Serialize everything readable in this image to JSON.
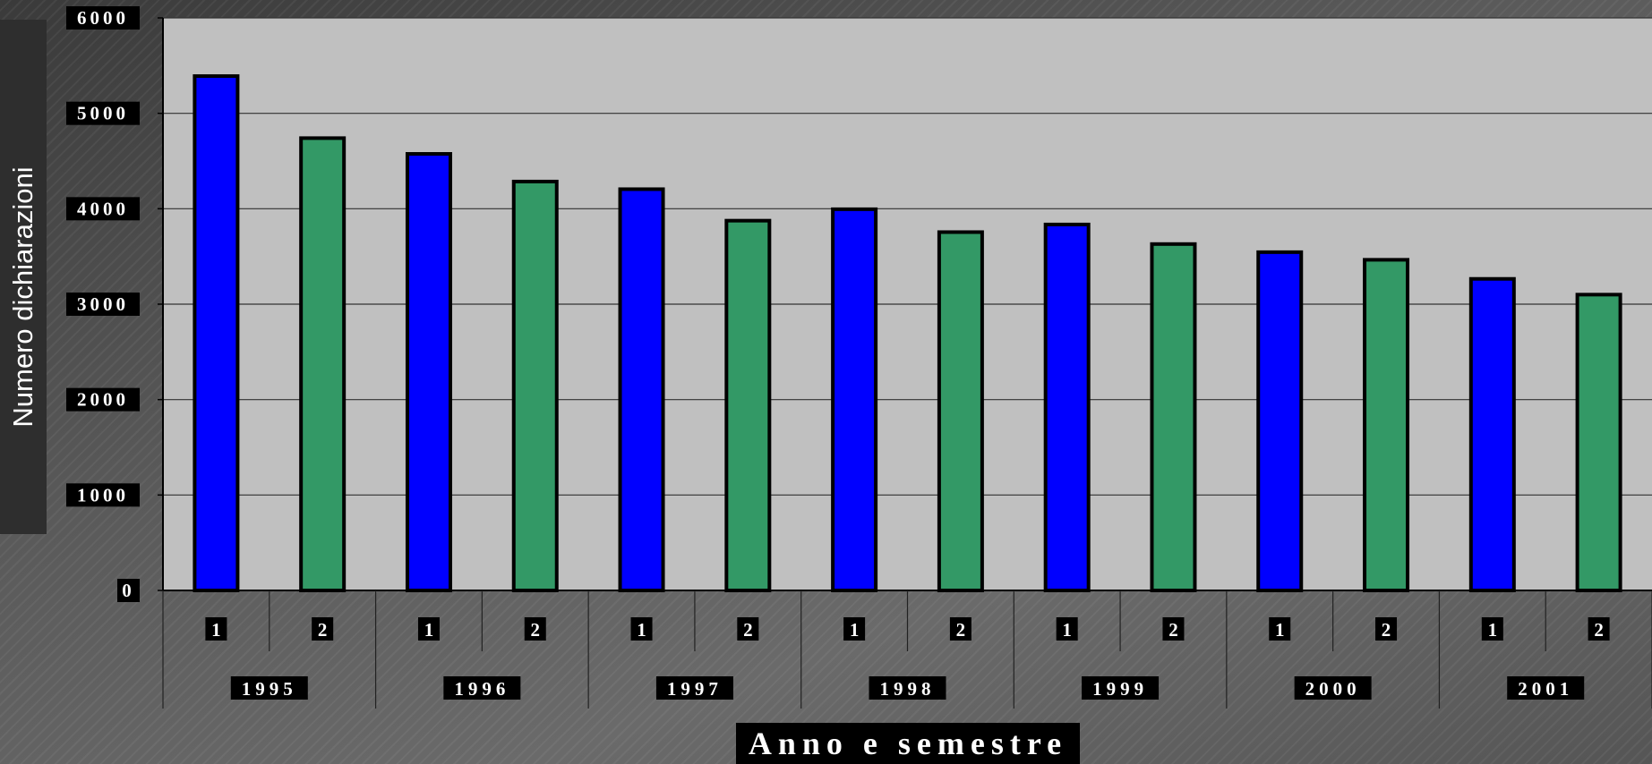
{
  "chart_data": {
    "type": "bar",
    "ylabel": "Numero dichiarazioni",
    "xlabel": "Anno e semestre",
    "ylim": [
      0,
      6000
    ],
    "yticks": [
      "0",
      "1000",
      "2000",
      "3000",
      "4000",
      "5000",
      "6000"
    ],
    "grid": true,
    "categories": [
      {
        "year": "1995",
        "semester": "1"
      },
      {
        "year": "1995",
        "semester": "2"
      },
      {
        "year": "1996",
        "semester": "1"
      },
      {
        "year": "1996",
        "semester": "2"
      },
      {
        "year": "1997",
        "semester": "1"
      },
      {
        "year": "1997",
        "semester": "2"
      },
      {
        "year": "1998",
        "semester": "1"
      },
      {
        "year": "1998",
        "semester": "2"
      },
      {
        "year": "1999",
        "semester": "1"
      },
      {
        "year": "1999",
        "semester": "2"
      },
      {
        "year": "2000",
        "semester": "1"
      },
      {
        "year": "2000",
        "semester": "2"
      },
      {
        "year": "2001",
        "semester": "1"
      },
      {
        "year": "2001",
        "semester": "2"
      }
    ],
    "years": [
      "1995",
      "1996",
      "1997",
      "1998",
      "1999",
      "2000",
      "2001"
    ],
    "values": [
      5390,
      4740,
      4575,
      4285,
      4205,
      3875,
      3995,
      3755,
      3835,
      3630,
      3545,
      3465,
      3265,
      3100
    ],
    "colors": {
      "semester_1": "#0000ff",
      "semester_2": "#339966",
      "plot_background": "#c0c0c0",
      "label_background": "#000000",
      "label_text": "#ffffff"
    }
  }
}
